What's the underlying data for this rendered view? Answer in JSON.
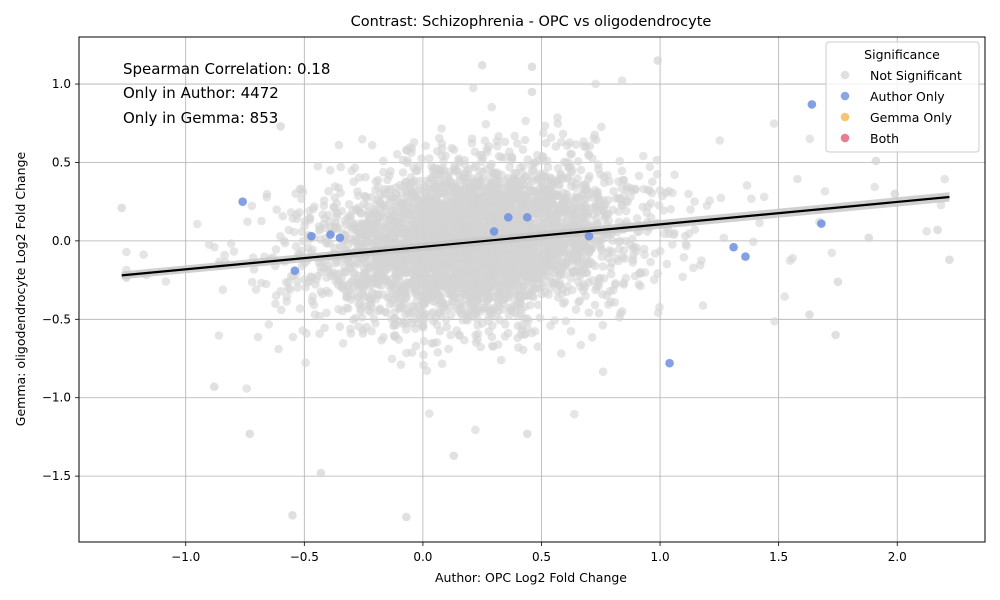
{
  "chart_data": {
    "type": "scatter",
    "title": "Contrast: Schizophrenia - OPC vs oligodendrocyte",
    "xlabel": "Author: OPC Log2 Fold Change",
    "ylabel": "Gemma: oligodendrocyte Log2 Fold Change",
    "xlim": [
      -1.45,
      2.37
    ],
    "ylim": [
      -1.92,
      1.3
    ],
    "xticks": [
      -1.0,
      -0.5,
      0.0,
      0.5,
      1.0,
      1.5,
      2.0
    ],
    "xtick_labels": [
      "−1.0",
      "−0.5",
      "0.0",
      "0.5",
      "1.0",
      "1.5",
      "2.0"
    ],
    "yticks": [
      -1.5,
      -1.0,
      -0.5,
      0.0,
      0.5,
      1.0
    ],
    "ytick_labels": [
      "−1.5",
      "−1.0",
      "−0.5",
      "0.0",
      "0.5",
      "1.0"
    ],
    "grid": true,
    "annotations": [
      "Spearman Correlation: 0.18",
      "Only in Author: 4472",
      "Only in Gemma: 853"
    ],
    "legend": {
      "title": "Significance",
      "placement": "top-right",
      "entries": [
        {
          "label": "Not Significant",
          "color": "#d3d3d3"
        },
        {
          "label": "Author Only",
          "color": "#6f8fdf"
        },
        {
          "label": "Gemma Only",
          "color": "#f5b451"
        },
        {
          "label": "Both",
          "color": "#e05c74"
        }
      ]
    },
    "regression_line": {
      "x": [
        -1.27,
        2.22
      ],
      "y": [
        -0.22,
        0.28
      ],
      "color": "#000000"
    },
    "series": [
      {
        "name": "Author Only",
        "color": "#6f8fdf",
        "points": [
          [
            -0.76,
            0.25
          ],
          [
            1.64,
            0.87
          ],
          [
            1.68,
            0.11
          ],
          [
            1.31,
            -0.04
          ],
          [
            1.36,
            -0.1
          ],
          [
            1.04,
            -0.78
          ],
          [
            -0.54,
            -0.19
          ],
          [
            -0.47,
            0.03
          ],
          [
            -0.39,
            0.04
          ],
          [
            -0.35,
            0.02
          ],
          [
            0.36,
            0.15
          ],
          [
            0.44,
            0.15
          ],
          [
            0.3,
            0.06
          ],
          [
            0.7,
            0.03
          ]
        ]
      },
      {
        "name": "Not Significant",
        "color": "#d3d3d3",
        "highlights": [
          [
            -1.27,
            0.21
          ],
          [
            -0.6,
            0.73
          ],
          [
            0.25,
            1.12
          ],
          [
            0.46,
            1.11
          ],
          [
            0.99,
            1.15
          ],
          [
            0.46,
            0.95
          ],
          [
            -0.55,
            -1.75
          ],
          [
            -0.07,
            -1.76
          ],
          [
            -0.43,
            -1.48
          ],
          [
            0.13,
            -1.37
          ],
          [
            0.44,
            -1.23
          ],
          [
            -0.73,
            -1.23
          ],
          [
            -0.88,
            -0.93
          ],
          [
            2.22,
            -0.12
          ],
          [
            2.17,
            0.07
          ],
          [
            1.91,
            0.51
          ],
          [
            1.63,
            -0.47
          ],
          [
            1.74,
            -0.6
          ],
          [
            1.75,
            -0.26
          ],
          [
            1.88,
            0.02
          ],
          [
            1.99,
            0.3
          ]
        ]
      }
    ]
  }
}
